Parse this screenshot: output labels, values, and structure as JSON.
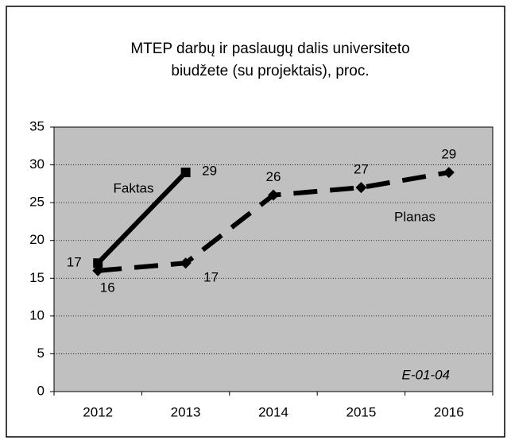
{
  "chart_data": {
    "type": "line",
    "title": [
      "MTEP darbų ir paslaugų dalis universiteto",
      "biudžete (su projektais), proc."
    ],
    "categories": [
      "2012",
      "2013",
      "2014",
      "2015",
      "2016"
    ],
    "series": [
      {
        "name": "Faktas",
        "color": "#000000",
        "marker": "square",
        "dashed": false,
        "values": [
          17,
          29,
          null,
          null,
          null
        ]
      },
      {
        "name": "Planas",
        "color": "#000000",
        "marker": "diamond",
        "dashed": true,
        "values": [
          16,
          17,
          26,
          27,
          29
        ]
      }
    ],
    "annotation": "E-01-04",
    "ylim": [
      0,
      35
    ],
    "yticks": [
      0,
      5,
      10,
      15,
      20,
      25,
      30,
      35
    ],
    "grid": true
  }
}
